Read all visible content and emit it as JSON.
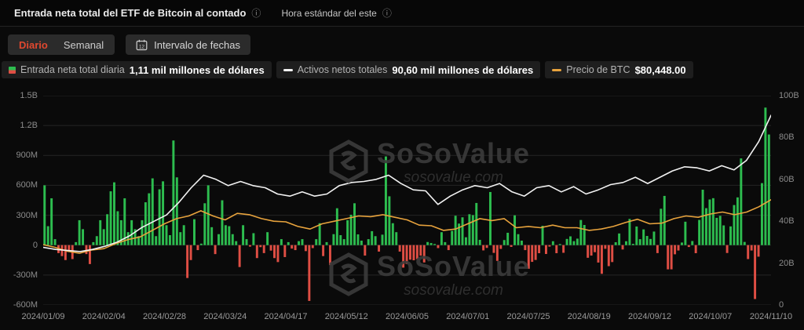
{
  "header": {
    "title": "Entrada neta total del ETF de Bitcoin al contado",
    "timezone": "Hora estándar del este"
  },
  "icons": {
    "info": "ⓘ"
  },
  "toolbar": {
    "tabs": [
      {
        "label": "Diario",
        "active": true
      },
      {
        "label": "Semanal",
        "active": false
      }
    ],
    "date_range_label": "Intervalo de fechas",
    "calendar_day": "12"
  },
  "legend": [
    {
      "label": "Entrada neta total diaria",
      "value": "1,11 mil millones de dólares",
      "icon": "bar-green-red-square"
    },
    {
      "label": "Activos netos totales",
      "value": "90,60 mil millones de dólares",
      "icon": "white-dash"
    },
    {
      "label": "Precio de BTC",
      "value": "$80,448.00",
      "icon": "orange-dash"
    }
  ],
  "watermark": {
    "name": "SoSoValue",
    "domain": "sosovalue.com"
  },
  "colors": {
    "accent_tab": "#e0482f",
    "bar_positive": "#2dbd4f",
    "bar_negative": "#df4e44",
    "line_assets": "#f2f2f2",
    "line_price": "#e8a33d",
    "grid": "#242424",
    "background": "#0a0a0a"
  },
  "chart_data": {
    "type": "bar",
    "subtype": "combo-bar-two-lines",
    "title": "Entrada neta total del ETF de Bitcoin al contado",
    "grid": true,
    "left_axis": {
      "labels": [
        "1.5B",
        "1.2B",
        "900M",
        "600M",
        "300M",
        "0",
        "-300M",
        "-600M"
      ],
      "max_M": 1500,
      "min_M": -600,
      "step_M": 300
    },
    "right_axis": {
      "labels": [
        "100B",
        "80B",
        "60B",
        "40B",
        "20B",
        "0"
      ],
      "max_B": 100,
      "min_B": 0,
      "step_B": 20
    },
    "price_axis_usd_range": [
      0,
      160000
    ],
    "x_labels": [
      "2024/01/09",
      "2024/02/04",
      "2024/02/28",
      "2024/03/24",
      "2024/04/17",
      "2024/05/12",
      "2024/06/05",
      "2024/07/01",
      "2024/07/25",
      "2024/08/19",
      "2024/09/12",
      "2024/10/07",
      "2024/11/10"
    ],
    "series": [
      {
        "name": "Entrada neta total diaria",
        "type": "bar",
        "unit": "millions_usd",
        "latest": 1110,
        "values": [
          600,
          190,
          470,
          60,
          -80,
          -110,
          -150,
          -60,
          -140,
          30,
          250,
          160,
          -90,
          -190,
          30,
          90,
          250,
          160,
          310,
          540,
          630,
          340,
          250,
          470,
          130,
          250,
          160,
          90,
          250,
          430,
          520,
          670,
          90,
          560,
          640,
          200,
          100,
          1050,
          680,
          130,
          200,
          -330,
          -150,
          260,
          -50,
          15,
          420,
          600,
          180,
          -90,
          110,
          450,
          200,
          190,
          110,
          40,
          -220,
          200,
          60,
          -15,
          120,
          -130,
          -20,
          -80,
          130,
          -55,
          -130,
          -170,
          60,
          -120,
          30,
          -35,
          -50,
          40,
          60,
          -60,
          -560,
          -30,
          60,
          220,
          -110,
          30,
          -200,
          110,
          370,
          100,
          60,
          250,
          305,
          420,
          108,
          45,
          -105,
          60,
          140,
          90,
          -65,
          105,
          890,
          490,
          220,
          130,
          -65,
          -226,
          -190,
          -146,
          -152,
          -140,
          -106,
          -174,
          31,
          21,
          11,
          -30,
          130,
          30,
          -50,
          143,
          295,
          216,
          279,
          79,
          310,
          301,
          423,
          53,
          -53,
          -28,
          533,
          -78,
          -158,
          -38,
          51,
          124,
          -18,
          299,
          110,
          45,
          -50,
          -237,
          -168,
          -149,
          -81,
          194,
          -89,
          -15,
          39,
          -81,
          11,
          -77,
          62,
          88,
          40,
          65,
          252,
          202,
          -127,
          -105,
          -71,
          -175,
          -288,
          -37,
          -211,
          -170,
          29,
          117,
          -44,
          39,
          263,
          13,
          187,
          60,
          158,
          92,
          62,
          136,
          -80,
          365,
          494,
          -243,
          -243,
          -92,
          -54,
          26,
          235,
          -19,
          41,
          -81,
          253,
          556,
          371,
          458,
          471,
          274,
          294,
          198,
          -79,
          188,
          402,
          479,
          870,
          32,
          -140,
          -54,
          -541,
          -116,
          622,
          1380,
          1110
        ]
      },
      {
        "name": "Activos netos totales",
        "type": "line",
        "unit": "billions_usd",
        "latest": 90.6,
        "values": [
          27.5,
          26.5,
          26,
          25.5,
          26.5,
          28,
          30,
          33,
          37,
          40,
          43,
          49,
          56,
          62,
          60,
          57,
          59,
          57,
          56,
          53,
          52,
          54,
          52,
          53,
          57,
          58.5,
          59,
          60,
          62,
          58,
          55,
          54.5,
          48,
          52,
          55,
          57,
          56,
          58,
          54,
          52,
          56,
          57,
          54,
          56.5,
          53,
          55,
          57.5,
          58.5,
          61,
          58,
          61,
          64,
          66,
          65.5,
          64,
          66.5,
          64.5,
          69,
          78,
          90.6
        ]
      },
      {
        "name": "Precio de BTC",
        "type": "line",
        "unit": "thousands_usd",
        "latest": 80.448,
        "values": [
          46,
          44,
          41,
          39.5,
          42,
          43,
          47,
          50,
          52,
          57,
          62,
          66,
          68,
          72,
          68,
          65,
          70,
          69,
          66,
          64,
          63.5,
          60,
          58,
          62,
          64,
          66,
          68,
          67.5,
          69,
          67,
          65,
          61,
          60.5,
          57,
          58,
          62,
          66,
          64.5,
          66,
          59,
          60,
          59,
          61,
          59,
          59,
          57,
          58,
          60,
          63,
          65.5,
          62,
          62.5,
          66,
          68,
          67,
          69.5,
          71,
          69,
          71,
          75,
          80.4
        ]
      }
    ]
  }
}
